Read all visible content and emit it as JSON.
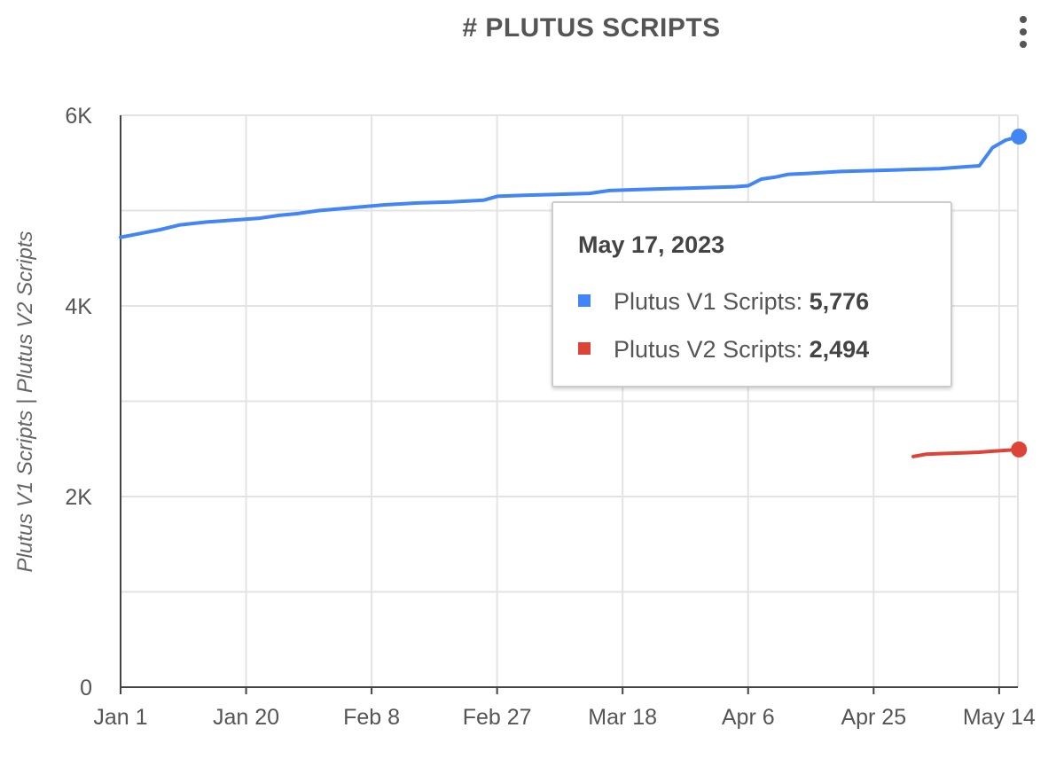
{
  "chart": {
    "title": "# PLUTUS SCRIPTS",
    "menu_icon": "more-vert-icon",
    "tooltip": {
      "date": "May 17, 2023",
      "rows": [
        {
          "label": "Plutus V1 Scripts:",
          "value": "5,776",
          "color": "#4285f4"
        },
        {
          "label": "Plutus V2 Scripts:",
          "value": "2,494",
          "color": "#db4437"
        }
      ]
    }
  },
  "chart_data": {
    "type": "line",
    "title": "# PLUTUS SCRIPTS",
    "xlabel": "",
    "ylabel": "Plutus V1 Scripts | Plutus V2 Scripts",
    "x_tick_labels": [
      "Jan 1",
      "Jan 20",
      "Feb 8",
      "Feb 27",
      "Mar 18",
      "Apr 6",
      "Apr 25",
      "May 14"
    ],
    "x_range": [
      "2023-01-01",
      "2023-05-17"
    ],
    "y_tick_labels": [
      "0",
      "2K",
      "4K",
      "6K"
    ],
    "ylim": [
      0,
      6000
    ],
    "grid": true,
    "legend": "none",
    "series": [
      {
        "name": "Plutus V1 Scripts",
        "color": "#4285f4",
        "points": [
          [
            "2023-01-01",
            4720
          ],
          [
            "2023-01-04",
            4760
          ],
          [
            "2023-01-07",
            4800
          ],
          [
            "2023-01-10",
            4850
          ],
          [
            "2023-01-14",
            4880
          ],
          [
            "2023-01-18",
            4900
          ],
          [
            "2023-01-22",
            4920
          ],
          [
            "2023-01-25",
            4950
          ],
          [
            "2023-01-28",
            4970
          ],
          [
            "2023-01-31",
            5000
          ],
          [
            "2023-02-05",
            5030
          ],
          [
            "2023-02-10",
            5060
          ],
          [
            "2023-02-15",
            5080
          ],
          [
            "2023-02-20",
            5090
          ],
          [
            "2023-02-25",
            5110
          ],
          [
            "2023-02-27",
            5150
          ],
          [
            "2023-03-03",
            5160
          ],
          [
            "2023-03-08",
            5170
          ],
          [
            "2023-03-13",
            5180
          ],
          [
            "2023-03-16",
            5210
          ],
          [
            "2023-03-20",
            5220
          ],
          [
            "2023-03-25",
            5230
          ],
          [
            "2023-03-30",
            5240
          ],
          [
            "2023-04-04",
            5250
          ],
          [
            "2023-04-06",
            5260
          ],
          [
            "2023-04-08",
            5330
          ],
          [
            "2023-04-10",
            5350
          ],
          [
            "2023-04-12",
            5380
          ],
          [
            "2023-04-15",
            5390
          ],
          [
            "2023-04-20",
            5410
          ],
          [
            "2023-04-25",
            5420
          ],
          [
            "2023-04-30",
            5430
          ],
          [
            "2023-05-05",
            5440
          ],
          [
            "2023-05-09",
            5460
          ],
          [
            "2023-05-11",
            5470
          ],
          [
            "2023-05-13",
            5660
          ],
          [
            "2023-05-15",
            5740
          ],
          [
            "2023-05-17",
            5776
          ]
        ]
      },
      {
        "name": "Plutus V2 Scripts",
        "color": "#db4437",
        "points": [
          [
            "2023-05-01",
            2420
          ],
          [
            "2023-05-03",
            2445
          ],
          [
            "2023-05-05",
            2450
          ],
          [
            "2023-05-07",
            2455
          ],
          [
            "2023-05-09",
            2460
          ],
          [
            "2023-05-11",
            2465
          ],
          [
            "2023-05-13",
            2475
          ],
          [
            "2023-05-15",
            2485
          ],
          [
            "2023-05-17",
            2494
          ]
        ]
      }
    ]
  }
}
